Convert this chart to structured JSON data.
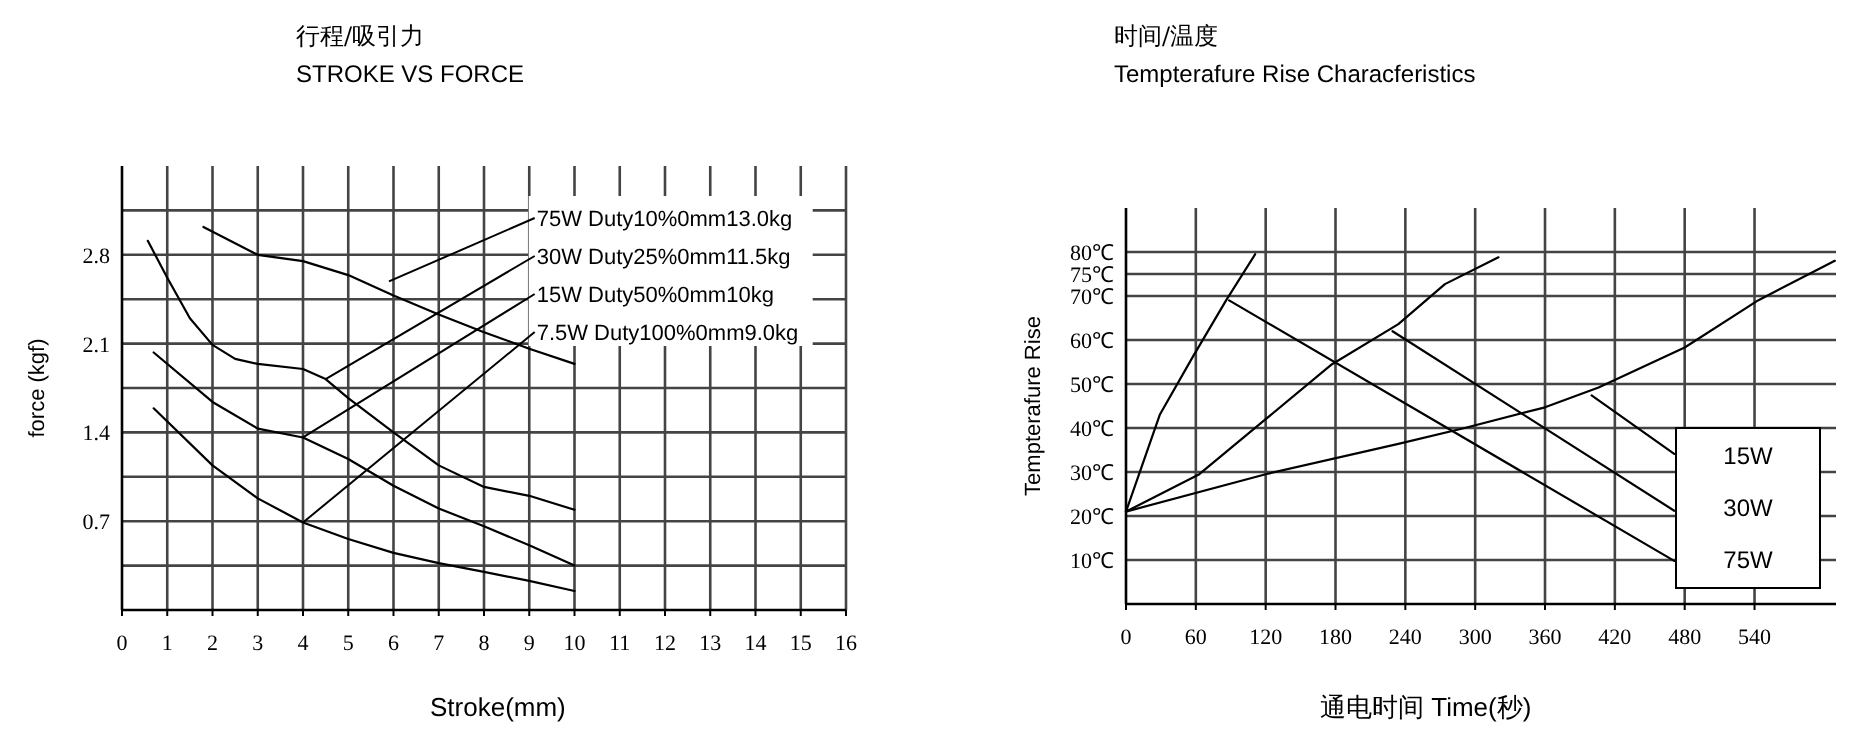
{
  "chart_data": [
    {
      "type": "line",
      "title": "行程/吸引力",
      "subtitle": "STROKE VS FORCE",
      "xlabel": "Stroke(mm)",
      "ylabel": "force (kgf)",
      "xlim": [
        0,
        16
      ],
      "ylim": [
        0,
        3.5
      ],
      "xticks": [
        0,
        1,
        2,
        3,
        4,
        5,
        6,
        7,
        8,
        9,
        10,
        11,
        12,
        13,
        14,
        15,
        16
      ],
      "yticks": [
        {
          "value": 0.35,
          "label": null
        },
        0.7,
        {
          "value": 1.05,
          "label": null
        },
        1.4,
        {
          "value": 1.75,
          "label": null
        },
        2.1,
        {
          "value": 2.45,
          "label": null
        },
        2.8,
        {
          "value": 3.15,
          "label": null
        }
      ],
      "grid": true,
      "series": [
        {
          "color": "#000000",
          "x": [
            1.8,
            3,
            4,
            5,
            6,
            7,
            8,
            9,
            10
          ],
          "values": [
            3.02,
            2.8,
            2.75,
            2.64,
            2.48,
            2.33,
            2.19,
            2.06,
            1.94
          ]
        },
        {
          "color": "#000000",
          "x": [
            0.57,
            1,
            1.5,
            2,
            2.5,
            3,
            4,
            4.5,
            5,
            6,
            7,
            8,
            9,
            10
          ],
          "values": [
            2.91,
            2.62,
            2.3,
            2.09,
            1.98,
            1.94,
            1.9,
            1.82,
            1.67,
            1.4,
            1.14,
            0.97,
            0.9,
            0.79
          ]
        },
        {
          "color": "#000000",
          "x": [
            0.7,
            2,
            3,
            4,
            5,
            6,
            7,
            8,
            9,
            10
          ],
          "values": [
            2.03,
            1.64,
            1.43,
            1.36,
            1.19,
            0.98,
            0.8,
            0.66,
            0.51,
            0.35
          ]
        },
        {
          "color": "#000000",
          "x": [
            0.7,
            2,
            3,
            4,
            5,
            6,
            7,
            8,
            9,
            10
          ],
          "values": [
            1.59,
            1.14,
            0.88,
            0.69,
            0.56,
            0.45,
            0.37,
            0.3,
            0.23,
            0.15
          ]
        }
      ],
      "annotations": [
        {
          "text": "75W Duty10%0mm13.0kg",
          "x": 5.9,
          "y": 2.59
        },
        {
          "text": "30W Duty25%0mm11.5kg",
          "x": 4.5,
          "y": 1.82
        },
        {
          "text": "15W Duty50%0mm10kg",
          "x": 4,
          "y": 1.36
        },
        {
          "text": "7.5W Duty100%0mm9.0kg",
          "x": 4,
          "y": 0.69
        }
      ]
    },
    {
      "type": "line",
      "title": "时间/温度",
      "subtitle": "Tempterafure Rise Characferistics",
      "xlabel": "通电时间  Time(秒)",
      "ylabel": "Tempterafure Rise",
      "xlim": [
        0,
        610
      ],
      "ylim": [
        0,
        90
      ],
      "xticks": [
        0,
        60,
        120,
        180,
        240,
        300,
        360,
        420,
        480,
        540
      ],
      "yticks": [
        {
          "value": 10,
          "label": "10℃"
        },
        {
          "value": 20,
          "label": "20℃"
        },
        {
          "value": 30,
          "label": "30℃"
        },
        {
          "value": 40,
          "label": "40℃"
        },
        {
          "value": 50,
          "label": "50℃"
        },
        {
          "value": 60,
          "label": "60℃"
        },
        {
          "value": 70,
          "label": "70℃"
        },
        {
          "value": 75,
          "label": "75℃"
        },
        {
          "value": 80,
          "label": "80℃"
        }
      ],
      "grid": true,
      "legend": "bottom right",
      "series": [
        {
          "color": "#000000",
          "x": [
            0,
            29,
            57,
            86,
            111
          ],
          "values": [
            21,
            43,
            56,
            69,
            79.5
          ]
        },
        {
          "color": "#000000",
          "x": [
            0,
            63,
            120,
            177,
            234,
            274,
            320
          ],
          "values": [
            21,
            29.5,
            42,
            54.5,
            63.6,
            72.7,
            78.8
          ]
        },
        {
          "color": "#000000",
          "x": [
            0,
            120,
            234,
            291,
            360,
            406,
            480,
            543,
            609
          ],
          "values": [
            21,
            29.5,
            36.4,
            40,
            44.7,
            49.2,
            58.3,
            69,
            78
          ]
        },
        {
          "name": "15W",
          "color": "#000000",
          "x": [
            400,
            471
          ],
          "values": [
            47.4,
            34.1
          ]
        },
        {
          "name": "30W",
          "color": "#000000",
          "x": [
            229,
            471
          ],
          "values": [
            62,
            21.2
          ]
        },
        {
          "name": "75W",
          "color": "#000000",
          "x": [
            88.6,
            471
          ],
          "values": [
            69,
            9.8
          ]
        }
      ]
    }
  ]
}
